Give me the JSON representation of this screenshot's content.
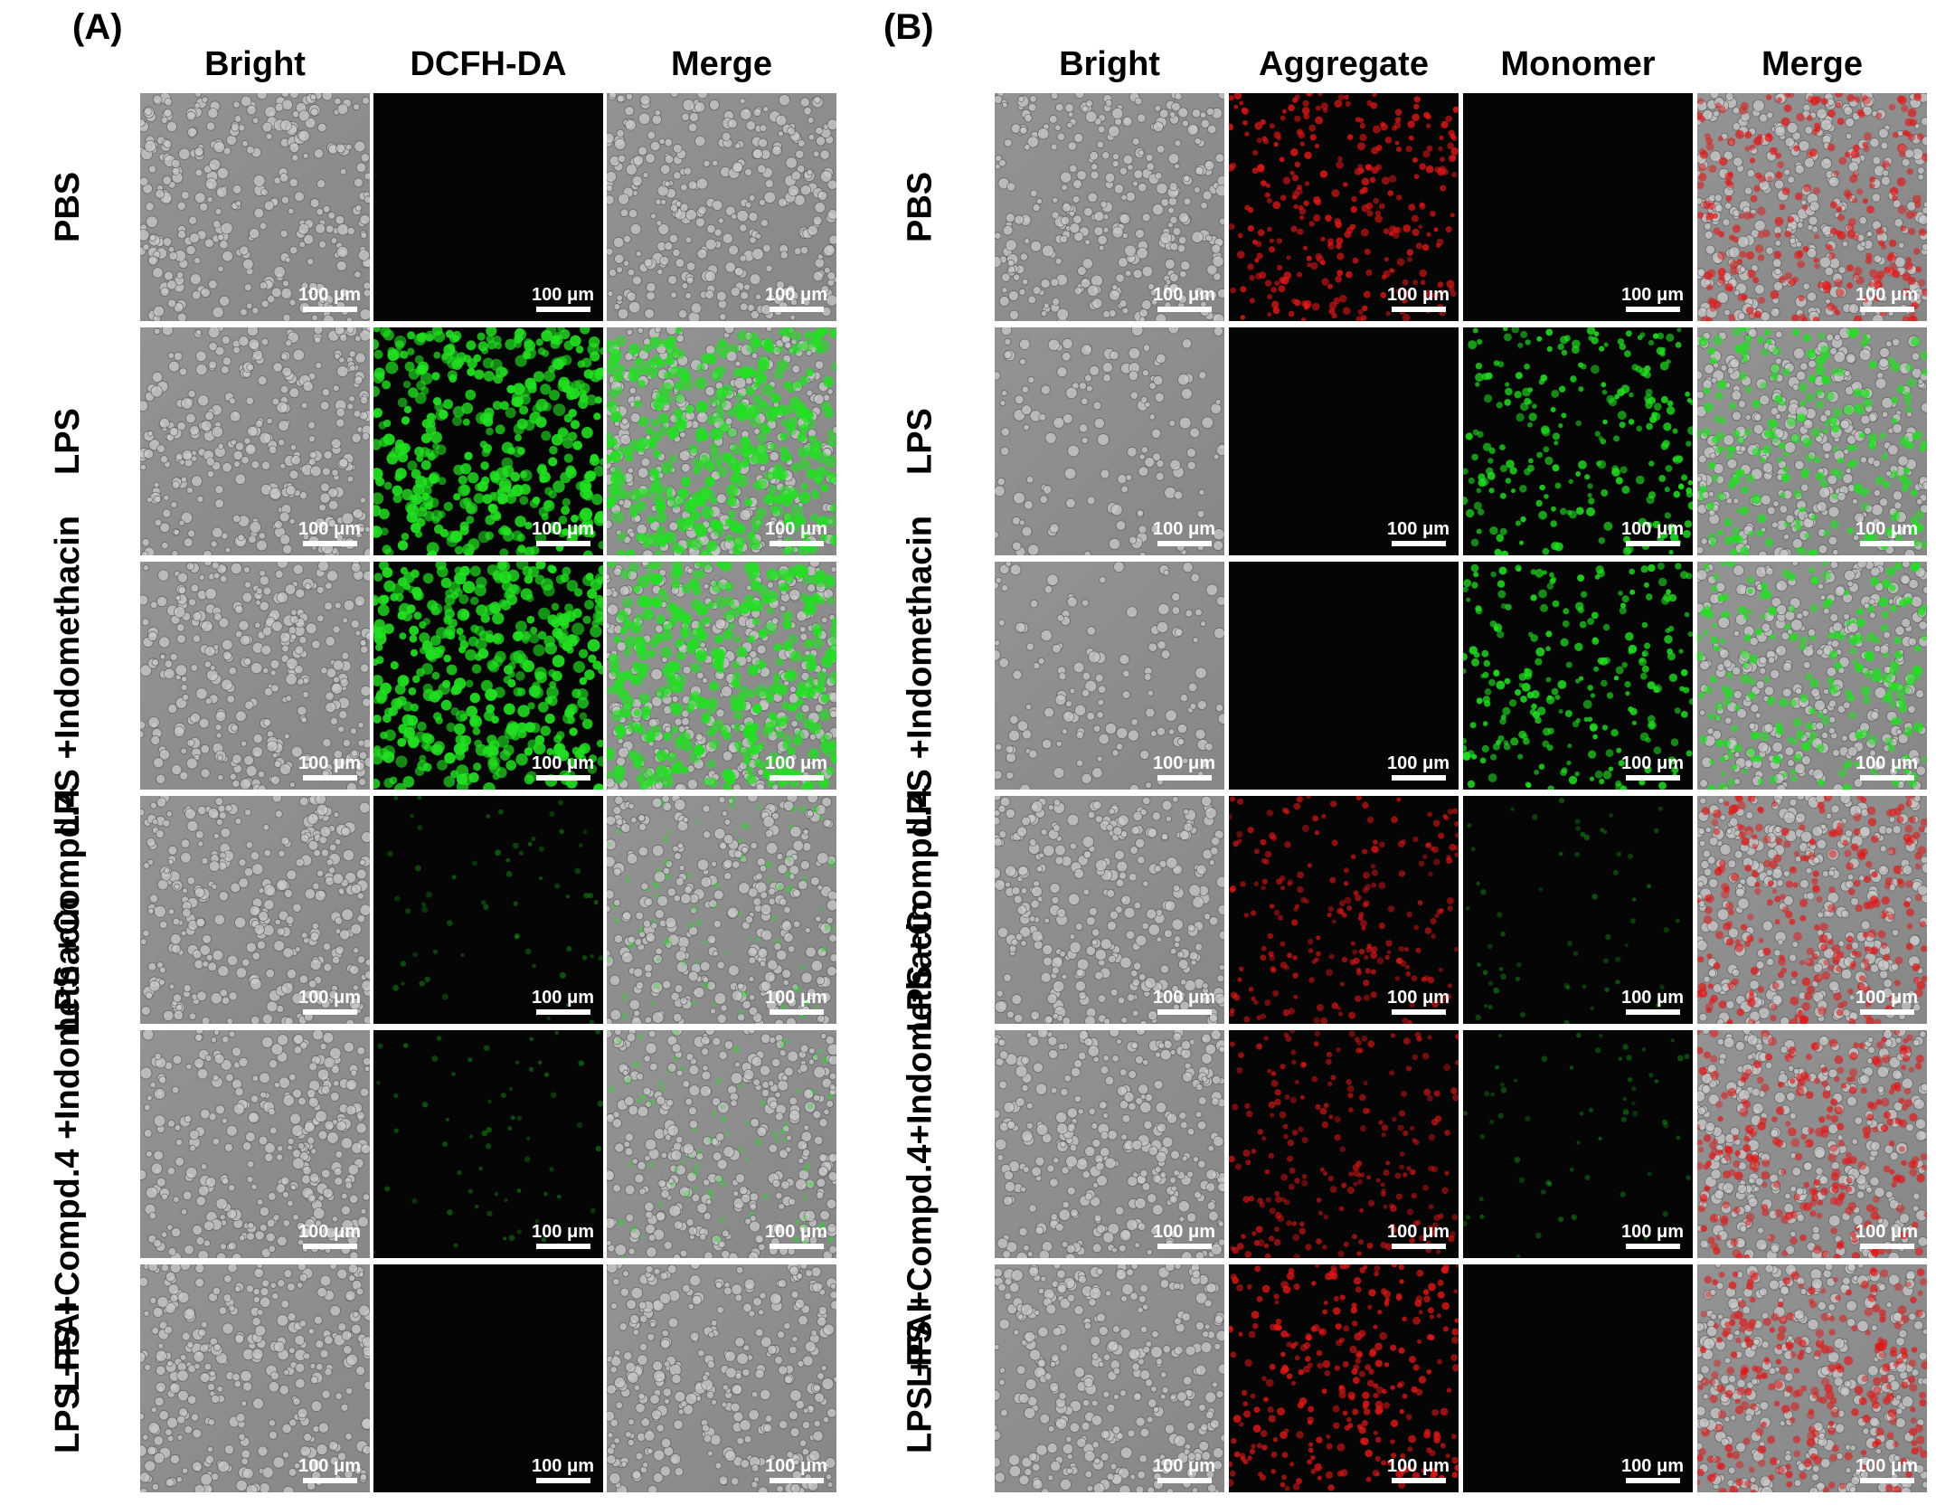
{
  "panels": [
    {
      "letter": "(A)",
      "columns": [
        "Bright",
        "DCFH-DA",
        "Merge"
      ],
      "rows": [
        {
          "label_lines": [
            "PBS"
          ],
          "tiles": [
            "bright",
            "dark",
            "merge-gray"
          ]
        },
        {
          "label_lines": [
            "LPS"
          ],
          "tiles": [
            "bright",
            "green-strong",
            "merge-green-strong"
          ]
        },
        {
          "label_lines": [
            "LPS +",
            "Indomethacin"
          ],
          "tiles": [
            "bright",
            "green-strong",
            "merge-green-strong"
          ]
        },
        {
          "label_lines": [
            "LPS +",
            "Compd.4"
          ],
          "tiles": [
            "bright",
            "green-faint",
            "merge-green-faint"
          ]
        },
        {
          "label_lines": [
            "LPS +",
            "Compd.4 +",
            "Indomethacin"
          ],
          "tiles": [
            "bright",
            "green-faint",
            "merge-green-faint"
          ]
        },
        {
          "label_lines": [
            "LPS +",
            "FAI"
          ],
          "tiles": [
            "bright",
            "dark",
            "merge-gray"
          ]
        }
      ]
    },
    {
      "letter": "(B)",
      "columns": [
        "Bright",
        "Aggregate",
        "Monomer",
        "Merge"
      ],
      "rows": [
        {
          "label_lines": [
            "PBS"
          ],
          "tiles": [
            "bright",
            "red-strong",
            "dark",
            "merge-red"
          ]
        },
        {
          "label_lines": [
            "LPS"
          ],
          "tiles": [
            "bright-sparse",
            "dark",
            "green-medium",
            "merge-green"
          ]
        },
        {
          "label_lines": [
            "LPS +",
            "Indomethacin"
          ],
          "tiles": [
            "bright-sparse",
            "dark",
            "green-medium",
            "merge-green"
          ]
        },
        {
          "label_lines": [
            "LPS +",
            "Compd.4"
          ],
          "tiles": [
            "bright",
            "red-medium",
            "green-faint",
            "merge-red"
          ]
        },
        {
          "label_lines": [
            "LPS +",
            "Compd.4+",
            "Indomethacin"
          ],
          "tiles": [
            "bright",
            "red-medium",
            "green-faint",
            "merge-red"
          ]
        },
        {
          "label_lines": [
            "LPS +",
            "FAI"
          ],
          "tiles": [
            "bright",
            "red-strong",
            "dark",
            "merge-red"
          ]
        }
      ]
    }
  ],
  "scale_bar_label": "100 μm",
  "colors": {
    "bright_bg": "#8f8f8f",
    "dark_bg": "#050505",
    "green": "#22e022",
    "red": "#e01818"
  }
}
